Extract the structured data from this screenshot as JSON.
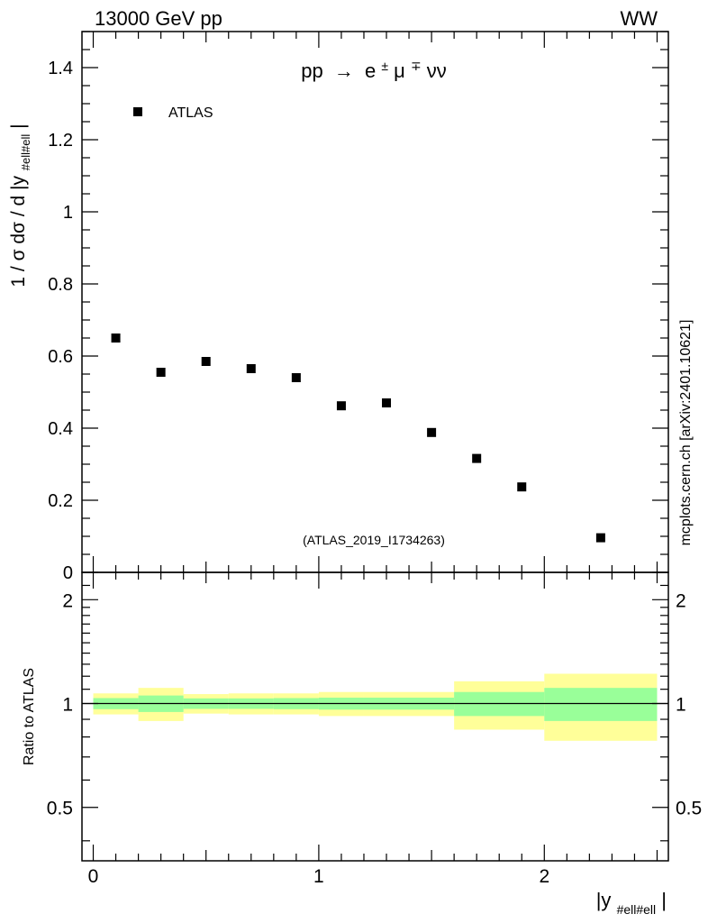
{
  "header": {
    "energy_label": "13000 GeV pp",
    "process_tag": "WW"
  },
  "watermark": "mcplots.cern.ch [arXiv:2401.10621]",
  "chart_data": [
    {
      "type": "scatter",
      "title": "pp → e±μ∓νν",
      "title_parts": {
        "left": "pp",
        "arrow": "→",
        "e": "e",
        "pm": "±",
        "mu": "μ",
        "mp": "∓",
        "nunu": "νν"
      },
      "ylabel": "1 / σ  dσ / d |y",
      "ylabel_sub": "#ell#ell",
      "ylabel_end": "|",
      "xlim": [
        -0.05,
        2.55
      ],
      "ylim": [
        0,
        1.5
      ],
      "yticks": [
        0,
        0.2,
        0.4,
        0.6,
        0.8,
        1,
        1.2,
        1.4
      ],
      "ytick_labels": [
        "0",
        "0.2",
        "0.4",
        "0.6",
        "0.8",
        "1",
        "1.2",
        "1.4"
      ],
      "legend": {
        "label": "ATLAS",
        "location": "top-left"
      },
      "analysis_tag": "(ATLAS_2019_I1734263)",
      "series": [
        {
          "name": "ATLAS",
          "x": [
            0.1,
            0.3,
            0.5,
            0.7,
            0.9,
            1.1,
            1.3,
            1.5,
            1.7,
            1.9,
            2.25
          ],
          "y": [
            0.65,
            0.555,
            0.585,
            0.565,
            0.54,
            0.462,
            0.47,
            0.388,
            0.316,
            0.237,
            0.096
          ]
        }
      ]
    },
    {
      "type": "area",
      "ylabel": "Ratio to ATLAS",
      "xlabel": "|y",
      "xlabel_sub": "#ell#ell",
      "xlabel_end": "|",
      "xlim": [
        -0.05,
        2.55
      ],
      "ylim": [
        0.35,
        2.4
      ],
      "yscale": "log",
      "xticks": [
        0,
        1,
        2
      ],
      "xtick_labels": [
        "0",
        "1",
        "2"
      ],
      "yticks": [
        0.5,
        1,
        2
      ],
      "ytick_labels": [
        "0.5",
        "1",
        "2"
      ],
      "reference_line": 1,
      "bins": [
        {
          "x0": 0.0,
          "x1": 0.2,
          "inner": [
            0.963,
            1.037
          ],
          "outer": [
            0.93,
            1.07
          ]
        },
        {
          "x0": 0.2,
          "x1": 0.4,
          "inner": [
            0.945,
            1.055
          ],
          "outer": [
            0.89,
            1.11
          ]
        },
        {
          "x0": 0.4,
          "x1": 0.6,
          "inner": [
            0.965,
            1.035
          ],
          "outer": [
            0.935,
            1.065
          ]
        },
        {
          "x0": 0.6,
          "x1": 0.8,
          "inner": [
            0.965,
            1.035
          ],
          "outer": [
            0.93,
            1.07
          ]
        },
        {
          "x0": 0.8,
          "x1": 1.0,
          "inner": [
            0.963,
            1.037
          ],
          "outer": [
            0.93,
            1.07
          ]
        },
        {
          "x0": 1.0,
          "x1": 1.2,
          "inner": [
            0.96,
            1.04
          ],
          "outer": [
            0.92,
            1.08
          ]
        },
        {
          "x0": 1.2,
          "x1": 1.6,
          "inner": [
            0.96,
            1.04
          ],
          "outer": [
            0.92,
            1.08
          ]
        },
        {
          "x0": 1.6,
          "x1": 2.0,
          "inner": [
            0.92,
            1.08
          ],
          "outer": [
            0.84,
            1.16
          ]
        },
        {
          "x0": 2.0,
          "x1": 2.5,
          "inner": [
            0.89,
            1.11
          ],
          "outer": [
            0.78,
            1.22
          ]
        }
      ]
    }
  ],
  "colors": {
    "inner_band": "#99ff99",
    "outer_band": "#ffff99",
    "marker": "#000000",
    "analysis_tag": "#999999",
    "watermark": "#999999"
  }
}
